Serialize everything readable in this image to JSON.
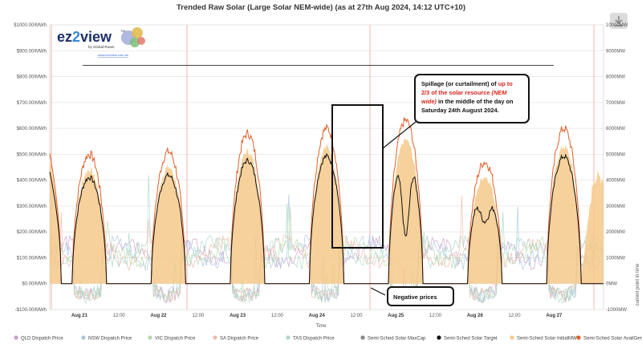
{
  "chart_data": {
    "type": "area",
    "title": "Trended Raw Solar (Large Solar NEM-wide) (as at 27th Aug 2024, 14:12 UTC+10)",
    "xlabel": "Time",
    "ylabel_right": "current point in time",
    "y_left": {
      "range": [
        -100,
        1000
      ],
      "ticks": [
        "-$100.00/MWh",
        "$0.00/MWh",
        "$100.00/MWh",
        "$200.00/MWh",
        "$300.00/MWh",
        "$400.00/MWh",
        "$500.00/MWh",
        "$600.00/MWh",
        "$700.00/MWh",
        "$800.00/MWh",
        "$900.00/MWh",
        "$1000.00/MWh"
      ]
    },
    "y_right": {
      "range": [
        -1000,
        10000
      ],
      "ticks": [
        "-1000MW",
        "0MW",
        "1000MW",
        "2000MW",
        "3000MW",
        "4000MW",
        "5000MW",
        "6000MW",
        "7000MW",
        "8000MW",
        "9000MW",
        "10000MW"
      ]
    },
    "x_ticks": [
      "Aug 21",
      "12:00",
      "Aug 22",
      "12:00",
      "Aug 23",
      "12:00",
      "Aug 24",
      "12:00",
      "Aug 25",
      "12:00",
      "Aug 26",
      "12:00",
      "Aug 27"
    ],
    "legend_position": "bottom",
    "legend": [
      {
        "name": "QLD Dispatch Price",
        "color": "#c9a0c8"
      },
      {
        "name": "NSW Dispatch Price",
        "color": "#a8c4e0"
      },
      {
        "name": "VIC Dispatch Price",
        "color": "#b8d8a8"
      },
      {
        "name": "SA Dispatch Price",
        "color": "#f2b8a8"
      },
      {
        "name": "TAS Dispatch Price",
        "color": "#a8d8c8"
      },
      {
        "name": "Semi-Sched Solar MaxCap",
        "color": "#888888"
      },
      {
        "name": "Semi-Sched Solar Target",
        "color": "#111111"
      },
      {
        "name": "Semi-Sched Solar InitialMW",
        "color": "#f5c98a"
      },
      {
        "name": "Semi-Sched Solar AvailGen",
        "color": "#e0602a"
      }
    ],
    "days": [
      {
        "x_center": 12.0,
        "avail_mw": 5000,
        "target_mw": 4100
      },
      {
        "x_center": 36.0,
        "avail_mw": 5100,
        "target_mw": 4300
      },
      {
        "x_center": 60.0,
        "avail_mw": 5800,
        "target_mw": 4400
      },
      {
        "x_center": 84.0,
        "avail_mw": 6000,
        "target_mw": 4800
      },
      {
        "x_center": 108.0,
        "avail_mw": 6300,
        "target_mw": 1800
      },
      {
        "x_center": 132.0,
        "avail_mw": 4700,
        "target_mw": 2700
      },
      {
        "x_center": 156.0,
        "avail_mw": 6000,
        "target_mw": 5000
      }
    ],
    "partial_day_start_mw": 4800,
    "partial_day_end_mw": 4100
  },
  "annotations": {
    "spillage": {
      "line1": "Spillage (or curtailment) of ",
      "line1_red": "up to",
      "line2_red": "2/3 of the solar resource ",
      "line2_red_it": "(NEM",
      "line3_red_it": "wide)",
      "line3": " in the middle of the day on",
      "line4": "Saturday 24th August 2024."
    },
    "negative": "Negative prices"
  },
  "logo": {
    "brand_a": "ez",
    "brand_b": "2",
    "brand_c": "view",
    "tm": "TM",
    "by": "by Global-Roam",
    "url": "www.ez2view.com.au"
  },
  "colors": {
    "initial_fill": "#f5c98a",
    "avail_line": "#e0602a",
    "target_line": "#111111",
    "grid": "#e6e6e6",
    "red_vline": "#f4a0a0"
  }
}
